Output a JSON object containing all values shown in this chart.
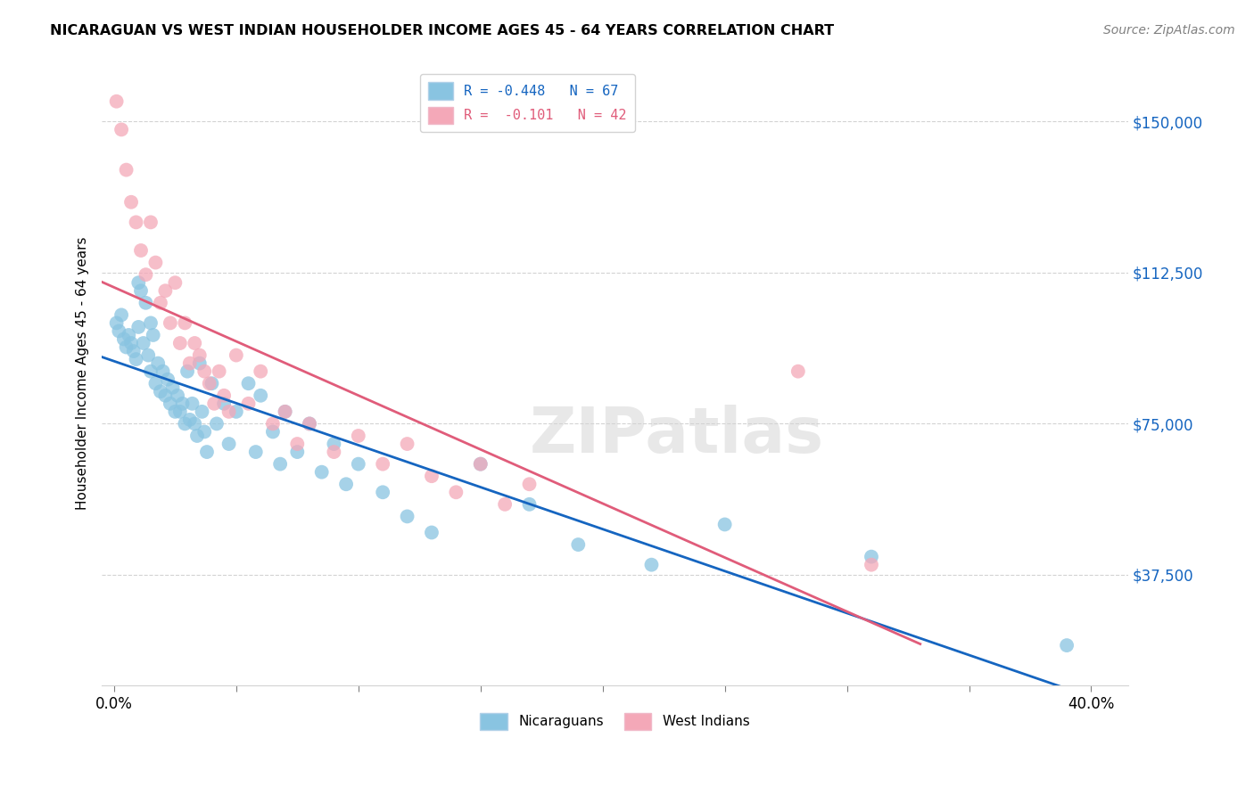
{
  "title": "NICARAGUAN VS WEST INDIAN HOUSEHOLDER INCOME AGES 45 - 64 YEARS CORRELATION CHART",
  "source": "Source: ZipAtlas.com",
  "ylabel": "Householder Income Ages 45 - 64 years",
  "xlim": [
    -0.005,
    0.415
  ],
  "ylim": [
    10000,
    165000
  ],
  "yticks": [
    37500,
    75000,
    112500,
    150000
  ],
  "ytick_labels": [
    "$37,500",
    "$75,000",
    "$112,500",
    "$150,000"
  ],
  "xtick_vals": [
    0.0,
    0.05,
    0.1,
    0.15,
    0.2,
    0.25,
    0.3,
    0.35,
    0.4
  ],
  "xtick_labels_show": [
    "0.0%",
    "",
    "",
    "",
    "",
    "",
    "",
    "",
    "40.0%"
  ],
  "R_blue": -0.448,
  "N_blue": 67,
  "R_pink": -0.101,
  "N_pink": 42,
  "color_blue": "#89c4e1",
  "color_pink": "#f4a8b8",
  "line_color_blue": "#1565c0",
  "line_color_pink": "#e05c7a",
  "watermark": "ZIPatlas",
  "bottom_legend_blue": "Nicaraguans",
  "bottom_legend_pink": "West Indians",
  "blue_x": [
    0.001,
    0.002,
    0.003,
    0.004,
    0.005,
    0.006,
    0.007,
    0.008,
    0.009,
    0.01,
    0.01,
    0.011,
    0.012,
    0.013,
    0.014,
    0.015,
    0.015,
    0.016,
    0.017,
    0.018,
    0.019,
    0.02,
    0.021,
    0.022,
    0.023,
    0.024,
    0.025,
    0.026,
    0.027,
    0.028,
    0.029,
    0.03,
    0.031,
    0.032,
    0.033,
    0.034,
    0.035,
    0.036,
    0.037,
    0.038,
    0.04,
    0.042,
    0.045,
    0.047,
    0.05,
    0.055,
    0.058,
    0.06,
    0.065,
    0.068,
    0.07,
    0.075,
    0.08,
    0.085,
    0.09,
    0.095,
    0.1,
    0.11,
    0.12,
    0.13,
    0.15,
    0.17,
    0.19,
    0.22,
    0.25,
    0.31,
    0.39
  ],
  "blue_y": [
    100000,
    98000,
    102000,
    96000,
    94000,
    97000,
    95000,
    93000,
    91000,
    110000,
    99000,
    108000,
    95000,
    105000,
    92000,
    100000,
    88000,
    97000,
    85000,
    90000,
    83000,
    88000,
    82000,
    86000,
    80000,
    84000,
    78000,
    82000,
    78000,
    80000,
    75000,
    88000,
    76000,
    80000,
    75000,
    72000,
    90000,
    78000,
    73000,
    68000,
    85000,
    75000,
    80000,
    70000,
    78000,
    85000,
    68000,
    82000,
    73000,
    65000,
    78000,
    68000,
    75000,
    63000,
    70000,
    60000,
    65000,
    58000,
    52000,
    48000,
    65000,
    55000,
    45000,
    40000,
    50000,
    42000,
    20000
  ],
  "pink_x": [
    0.001,
    0.003,
    0.005,
    0.007,
    0.009,
    0.011,
    0.013,
    0.015,
    0.017,
    0.019,
    0.021,
    0.023,
    0.025,
    0.027,
    0.029,
    0.031,
    0.033,
    0.035,
    0.037,
    0.039,
    0.041,
    0.043,
    0.045,
    0.047,
    0.05,
    0.055,
    0.06,
    0.065,
    0.07,
    0.075,
    0.08,
    0.09,
    0.1,
    0.11,
    0.12,
    0.13,
    0.14,
    0.15,
    0.16,
    0.17,
    0.28,
    0.31
  ],
  "pink_y": [
    155000,
    148000,
    138000,
    130000,
    125000,
    118000,
    112000,
    125000,
    115000,
    105000,
    108000,
    100000,
    110000,
    95000,
    100000,
    90000,
    95000,
    92000,
    88000,
    85000,
    80000,
    88000,
    82000,
    78000,
    92000,
    80000,
    88000,
    75000,
    78000,
    70000,
    75000,
    68000,
    72000,
    65000,
    70000,
    62000,
    58000,
    65000,
    55000,
    60000,
    88000,
    40000
  ]
}
